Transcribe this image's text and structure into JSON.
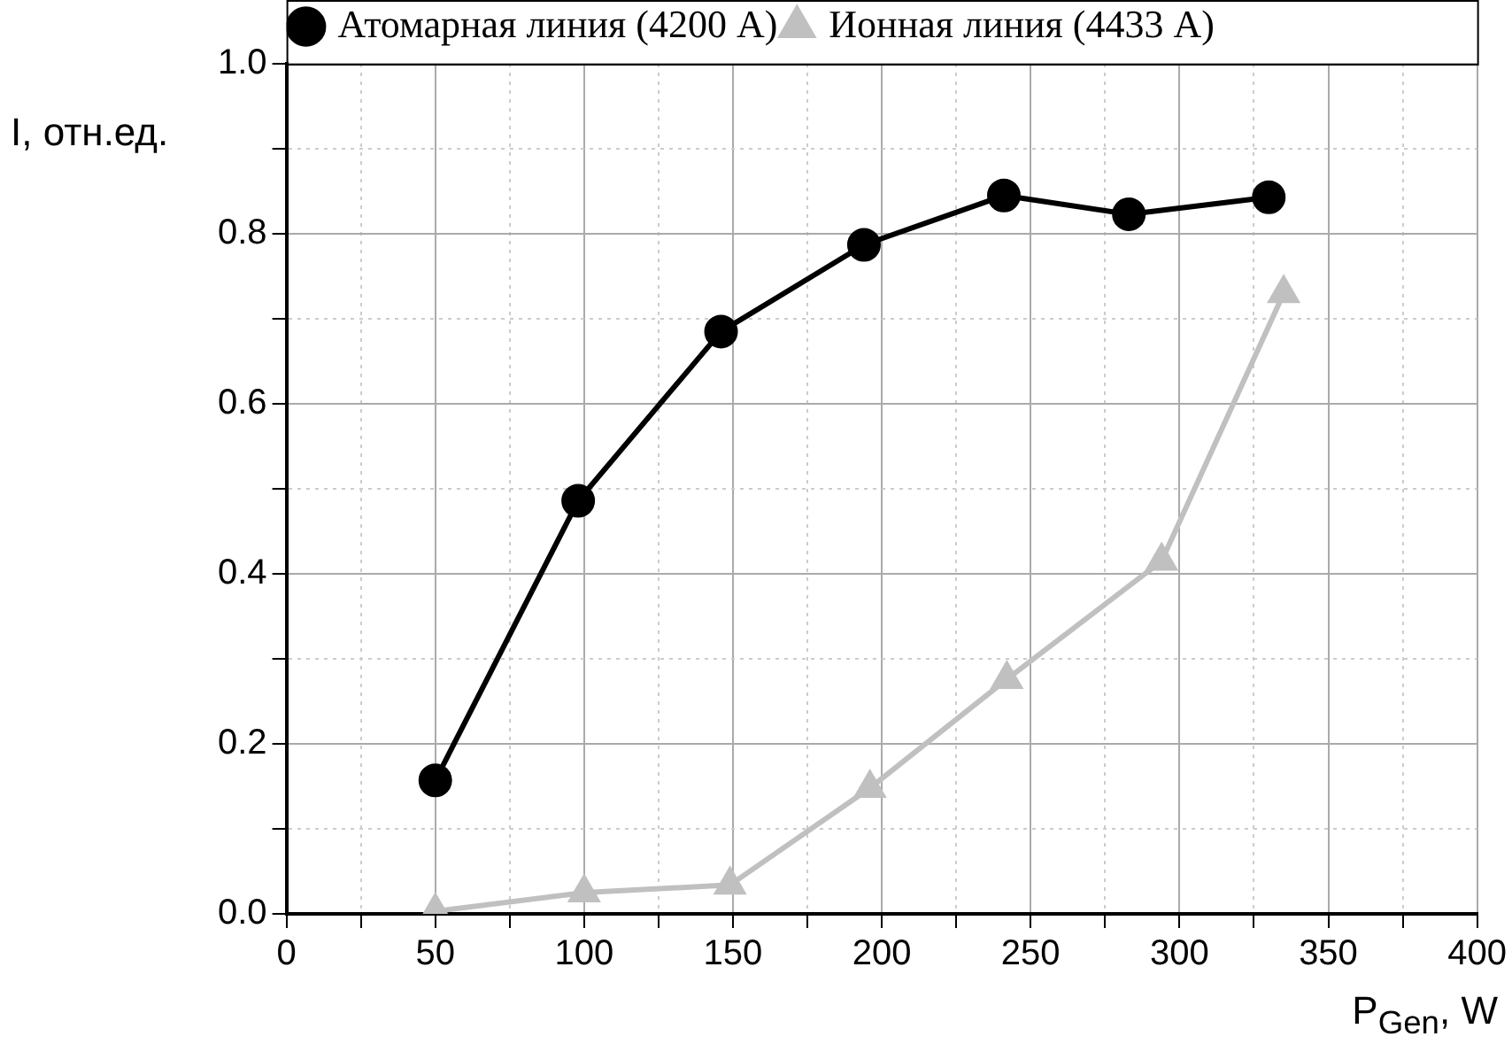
{
  "chart_data": {
    "type": "line",
    "xlabel": "P$_{Gen}$, W",
    "ylabel": "I, отн.ед.",
    "xlim": [
      0,
      400
    ],
    "xticks": [
      0,
      {
        "value": 25,
        "label": null
      },
      50,
      {
        "value": 75,
        "label": null
      },
      100,
      {
        "value": 125,
        "label": null
      },
      150,
      {
        "value": 175,
        "label": null
      },
      200,
      {
        "value": 225,
        "label": null
      },
      250,
      {
        "value": 275,
        "label": null
      },
      300,
      {
        "value": 325,
        "label": null
      },
      350,
      {
        "value": 375,
        "label": null
      },
      400
    ],
    "ylim": [
      0,
      1.0
    ],
    "yticks": [
      {
        "value": 0,
        "label": "0.0"
      },
      {
        "value": 0.1,
        "label": null
      },
      0.2,
      {
        "value": 0.3,
        "label": null
      },
      0.4,
      {
        "value": 0.5,
        "label": null
      },
      0.6,
      {
        "value": 0.7,
        "label": null
      },
      0.8,
      {
        "value": 0.9,
        "label": null
      },
      {
        "value": 1,
        "label": "1.0"
      }
    ],
    "grid": true,
    "legend": "top left",
    "line_style": "solid",
    "series": [
      {
        "name": "Атомарная линия (4200 А)",
        "color": "#000000",
        "marker": "circle",
        "x": [
          50,
          98,
          146,
          194,
          241,
          283,
          330
        ],
        "values": [
          0.157,
          0.486,
          0.685,
          0.787,
          0.845,
          0.823,
          0.843
        ]
      },
      {
        "name": "Ионная линия (4433 А)",
        "color": "#c0c0c0",
        "marker": "triangle",
        "x": [
          50,
          100,
          149,
          196,
          242,
          294,
          335
        ],
        "values": [
          0.003,
          0.025,
          0.034,
          0.148,
          0.276,
          0.415,
          0.73
        ]
      }
    ]
  }
}
